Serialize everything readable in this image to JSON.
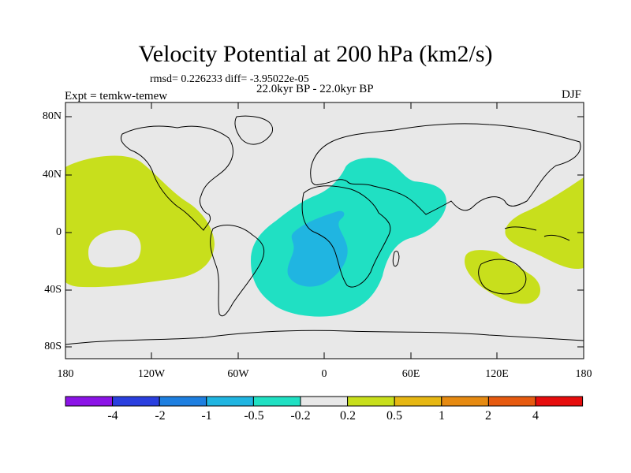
{
  "title": "Velocity Potential at 200 hPa (km2/s)",
  "stats": "rmsd= 0.226233 diff= -3.95022e-05",
  "period": "22.0kyr BP - 22.0kyr BP",
  "expt": "Expt = temkw-temew",
  "season": "DJF",
  "lat_labels": [
    "80N",
    "40N",
    "0",
    "40S",
    "80S"
  ],
  "lon_labels": [
    "180",
    "120W",
    "60W",
    "0",
    "60E",
    "120E",
    "180"
  ],
  "colorbar": {
    "colors": [
      "#8b14e6",
      "#2a3fdf",
      "#1e7fe0",
      "#20b5e1",
      "#20e0c3",
      "#e8e8e8",
      "#c8df1c",
      "#e6b713",
      "#e68a11",
      "#e65a10",
      "#e60d0d"
    ],
    "labels": [
      "-4",
      "-2",
      "-1",
      "-0.5",
      "-0.2",
      "0.2",
      "0.5",
      "1",
      "2",
      "4"
    ]
  },
  "colors": {
    "background_field": "#e8e8e8",
    "positive_low": "#c8df1c",
    "negative_low": "#20e0c3",
    "negative_mid": "#20b5e1",
    "coast": "#000000"
  }
}
